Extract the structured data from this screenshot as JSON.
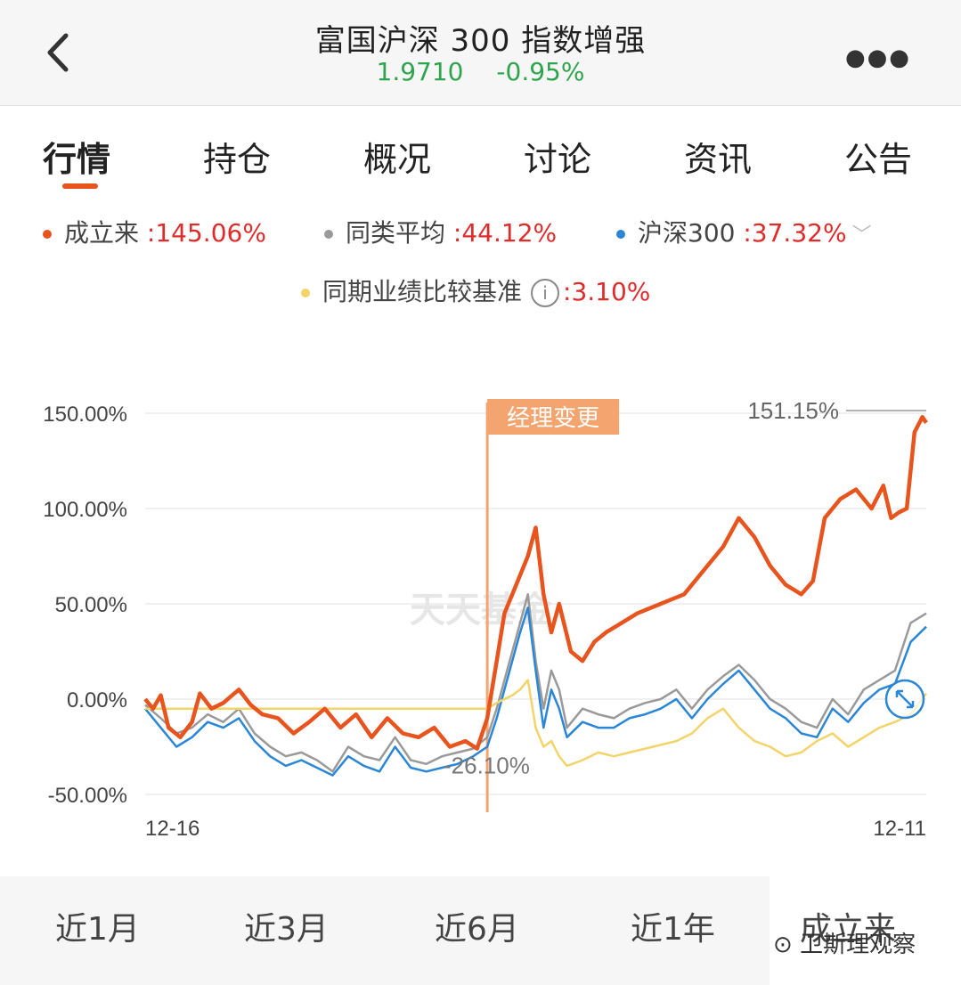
{
  "header": {
    "title": "富国沪深 300 指数增强",
    "nav": "1.9710",
    "change": "-0.95%"
  },
  "tabs": [
    "行情",
    "持仓",
    "概况",
    "讨论",
    "资讯",
    "公告"
  ],
  "legend": [
    {
      "name": "成立来",
      "value": ":145.06%",
      "color": "#e8541e"
    },
    {
      "name": "同类平均",
      "value": ":44.12%",
      "color": "#9a9a9a"
    },
    {
      "name": "沪深300",
      "value": ":37.32%",
      "color": "#2a86d6"
    },
    {
      "name": "同期业绩比较基准",
      "value": ":3.10%",
      "color": "#f2d46a"
    }
  ],
  "periods": [
    "近1月",
    "近3月",
    "近6月",
    "近1年",
    "成立来"
  ],
  "watermark": "卫斯理观察",
  "chart_watermark": "天天基金",
  "chart_data": {
    "type": "line",
    "x_start": "12-16",
    "x_end": "12-11",
    "ylim": [
      -50,
      150
    ],
    "yticks": [
      "150.00%",
      "100.00%",
      "50.00%",
      "0.00%",
      "-50.00%"
    ],
    "yticks_values": [
      150,
      100,
      50,
      0,
      -50
    ],
    "annotations": {
      "manager_change": {
        "label": "经理变更",
        "x": 0.438
      },
      "max_label": "151.15%",
      "min_label": "-26.10%"
    },
    "series": [
      {
        "name": "成立来",
        "color": "#e8541e",
        "x": [
          0,
          0.01,
          0.02,
          0.03,
          0.045,
          0.06,
          0.07,
          0.085,
          0.1,
          0.12,
          0.135,
          0.15,
          0.17,
          0.19,
          0.21,
          0.23,
          0.25,
          0.27,
          0.29,
          0.31,
          0.33,
          0.35,
          0.37,
          0.39,
          0.41,
          0.425,
          0.438,
          0.45,
          0.46,
          0.475,
          0.49,
          0.5,
          0.51,
          0.52,
          0.53,
          0.545,
          0.56,
          0.575,
          0.59,
          0.61,
          0.63,
          0.66,
          0.69,
          0.72,
          0.74,
          0.76,
          0.78,
          0.8,
          0.82,
          0.84,
          0.855,
          0.87,
          0.89,
          0.91,
          0.93,
          0.945,
          0.955,
          0.965,
          0.975,
          0.985,
          0.995,
          1.0
        ],
        "y": [
          0,
          -5,
          2,
          -15,
          -20,
          -12,
          3,
          -5,
          -2,
          5,
          -3,
          -8,
          -10,
          -18,
          -12,
          -5,
          -15,
          -8,
          -20,
          -10,
          -18,
          -20,
          -15,
          -25,
          -22,
          -26,
          -10,
          20,
          45,
          60,
          75,
          90,
          55,
          35,
          50,
          25,
          20,
          30,
          35,
          40,
          45,
          50,
          55,
          70,
          80,
          95,
          85,
          70,
          60,
          55,
          62,
          95,
          105,
          110,
          100,
          112,
          95,
          98,
          100,
          140,
          148,
          145
        ]
      },
      {
        "name": "同类平均",
        "color": "#9a9a9a",
        "x": [
          0,
          0.02,
          0.04,
          0.06,
          0.08,
          0.1,
          0.12,
          0.14,
          0.16,
          0.18,
          0.2,
          0.22,
          0.24,
          0.26,
          0.28,
          0.3,
          0.32,
          0.34,
          0.36,
          0.38,
          0.4,
          0.42,
          0.438,
          0.45,
          0.46,
          0.47,
          0.48,
          0.49,
          0.5,
          0.51,
          0.52,
          0.53,
          0.54,
          0.56,
          0.58,
          0.6,
          0.62,
          0.64,
          0.66,
          0.68,
          0.7,
          0.72,
          0.74,
          0.76,
          0.78,
          0.8,
          0.82,
          0.84,
          0.86,
          0.88,
          0.9,
          0.92,
          0.94,
          0.96,
          0.98,
          1.0
        ],
        "y": [
          -3,
          -10,
          -18,
          -15,
          -8,
          -12,
          -5,
          -18,
          -25,
          -30,
          -28,
          -32,
          -38,
          -25,
          -30,
          -32,
          -20,
          -32,
          -34,
          -30,
          -28,
          -26,
          -20,
          -5,
          10,
          25,
          40,
          55,
          20,
          -5,
          15,
          5,
          -15,
          -5,
          -8,
          -10,
          -5,
          -2,
          0,
          5,
          -5,
          5,
          12,
          18,
          10,
          0,
          -5,
          -12,
          -15,
          0,
          -8,
          5,
          10,
          15,
          40,
          45
        ]
      },
      {
        "name": "沪深300",
        "color": "#2a86d6",
        "x": [
          0,
          0.02,
          0.04,
          0.06,
          0.08,
          0.1,
          0.12,
          0.14,
          0.16,
          0.18,
          0.2,
          0.22,
          0.24,
          0.26,
          0.28,
          0.3,
          0.32,
          0.34,
          0.36,
          0.38,
          0.4,
          0.42,
          0.438,
          0.45,
          0.46,
          0.47,
          0.48,
          0.49,
          0.5,
          0.51,
          0.52,
          0.53,
          0.54,
          0.56,
          0.58,
          0.6,
          0.62,
          0.64,
          0.66,
          0.68,
          0.7,
          0.72,
          0.74,
          0.76,
          0.78,
          0.8,
          0.82,
          0.84,
          0.86,
          0.88,
          0.9,
          0.92,
          0.94,
          0.96,
          0.98,
          1.0
        ],
        "y": [
          -5,
          -15,
          -25,
          -20,
          -12,
          -15,
          -10,
          -22,
          -30,
          -35,
          -32,
          -36,
          -40,
          -30,
          -35,
          -38,
          -25,
          -36,
          -38,
          -36,
          -34,
          -30,
          -25,
          -10,
          5,
          20,
          35,
          48,
          15,
          -15,
          5,
          -5,
          -20,
          -12,
          -15,
          -15,
          -10,
          -8,
          -5,
          0,
          -10,
          0,
          8,
          15,
          5,
          -5,
          -10,
          -18,
          -20,
          -5,
          -12,
          -2,
          5,
          8,
          30,
          38
        ]
      },
      {
        "name": "同期业绩比较基准",
        "color": "#f2d46a",
        "x": [
          0,
          0.438,
          0.45,
          0.46,
          0.47,
          0.48,
          0.49,
          0.5,
          0.51,
          0.52,
          0.53,
          0.54,
          0.56,
          0.58,
          0.6,
          0.62,
          0.64,
          0.66,
          0.68,
          0.7,
          0.72,
          0.74,
          0.76,
          0.78,
          0.8,
          0.82,
          0.84,
          0.86,
          0.88,
          0.9,
          0.92,
          0.94,
          0.96,
          0.98,
          1.0
        ],
        "y": [
          -5,
          -5,
          -2,
          0,
          2,
          5,
          10,
          -15,
          -25,
          -22,
          -30,
          -35,
          -32,
          -28,
          -30,
          -28,
          -26,
          -24,
          -22,
          -18,
          -10,
          -5,
          -15,
          -22,
          -25,
          -30,
          -28,
          -22,
          -18,
          -25,
          -20,
          -15,
          -12,
          -8,
          3
        ]
      }
    ]
  }
}
